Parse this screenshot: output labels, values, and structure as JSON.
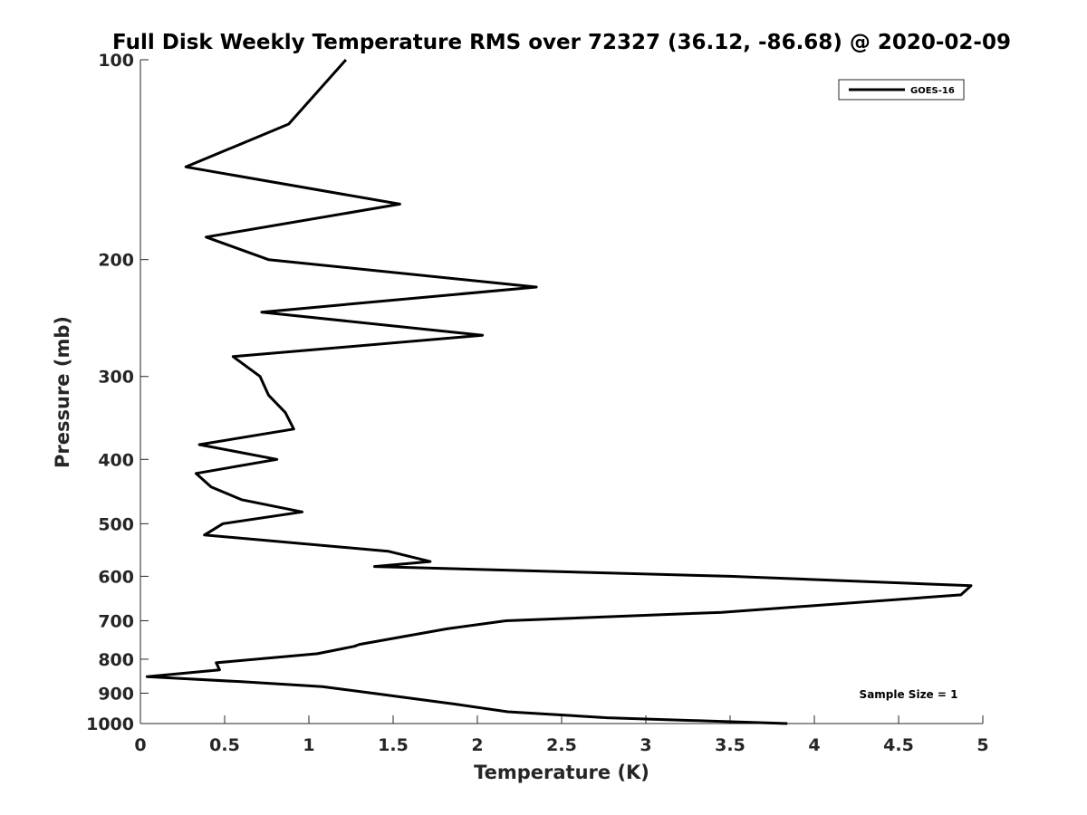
{
  "chart_data": {
    "type": "line",
    "title": "Full Disk Weekly Temperature RMS over 72327 (36.12, -86.68) @ 2020-02-09",
    "xlabel": "Temperature (K)",
    "ylabel": "Pressure (mb)",
    "xlim": [
      0,
      5
    ],
    "ylim": [
      100,
      1000
    ],
    "y_scale": "log",
    "y_reversed": true,
    "x_ticks": [
      "0",
      "0.5",
      "1",
      "1.5",
      "2",
      "2.5",
      "3",
      "3.5",
      "4",
      "4.5",
      "5"
    ],
    "y_ticks": [
      "100",
      "200",
      "300",
      "400",
      "500",
      "600",
      "700",
      "800",
      "900",
      "1000"
    ],
    "grid": false,
    "legend_position": "top-right",
    "annotation": "Sample Size = 1",
    "series": [
      {
        "name": "GOES-16",
        "color": "#000000",
        "x": [
          1.22,
          0.88,
          0.27,
          1.54,
          0.39,
          0.76,
          2.35,
          0.72,
          2.03,
          0.55,
          0.71,
          0.76,
          0.86,
          0.91,
          0.35,
          0.81,
          0.33,
          0.42,
          0.6,
          0.96,
          0.49,
          0.38,
          1.47,
          1.72,
          1.39,
          3.5,
          4.93,
          4.87,
          3.45,
          2.17,
          1.82,
          1.3,
          1.27,
          1.05,
          0.45,
          0.47,
          0.04,
          0.6,
          1.08,
          1.45,
          1.87,
          2.18,
          2.77,
          3.3,
          3.84
        ],
        "y": [
          100,
          125,
          145,
          165,
          185,
          200,
          220,
          240,
          260,
          280,
          300,
          320,
          340,
          360,
          380,
          400,
          420,
          440,
          460,
          480,
          500,
          520,
          550,
          570,
          580,
          600,
          620,
          640,
          680,
          700,
          720,
          760,
          765,
          785,
          810,
          830,
          850,
          865,
          880,
          905,
          935,
          960,
          980,
          990,
          1000
        ]
      }
    ]
  }
}
